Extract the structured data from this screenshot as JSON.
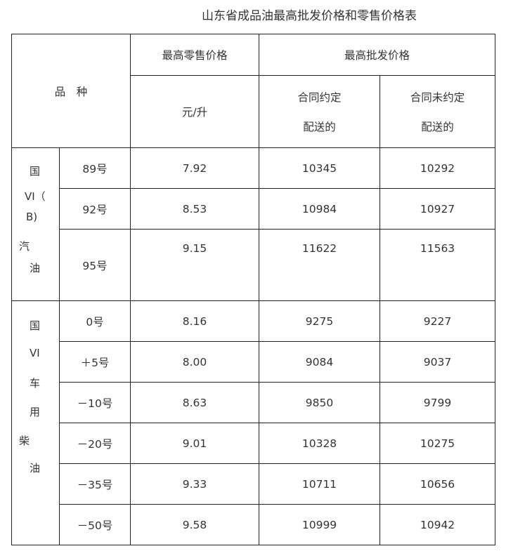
{
  "title": "山东省成品油最高批发价格和零售价格表",
  "header": {
    "variety": "品　种",
    "retail": "最高零售价格",
    "wholesale": "最高批发价格",
    "unit": "元/升",
    "contract_line1": "合同约定",
    "contract_line2": "配送的",
    "no_contract_line1": "合同未约定",
    "no_contract_line2": "配送的"
  },
  "groups": [
    {
      "label_lines": [
        "国",
        "VI（",
        "B)",
        "汽",
        "油"
      ],
      "rows": [
        {
          "grade": "89号",
          "retail": "7.92",
          "contract": "10345",
          "no_contract": "10292"
        },
        {
          "grade": "92号",
          "retail": "8.53",
          "contract": "10984",
          "no_contract": "10927"
        },
        {
          "grade": "95号",
          "retail": "9.15",
          "contract": "11622",
          "no_contract": "11563"
        }
      ]
    },
    {
      "label_lines": [
        "国",
        "VI",
        "车",
        "用",
        "柴",
        "油"
      ],
      "rows": [
        {
          "grade": "0号",
          "retail": "8.16",
          "contract": "9275",
          "no_contract": "9227"
        },
        {
          "grade": "＋5号",
          "retail": "8.00",
          "contract": "9084",
          "no_contract": "9037"
        },
        {
          "grade": "－10号",
          "retail": "8.63",
          "contract": "9850",
          "no_contract": "9799"
        },
        {
          "grade": "－20号",
          "retail": "9.01",
          "contract": "10328",
          "no_contract": "10275"
        },
        {
          "grade": "－35号",
          "retail": "9.33",
          "contract": "10711",
          "no_contract": "10656"
        },
        {
          "grade": "－50号",
          "retail": "9.58",
          "contract": "10999",
          "no_contract": "10942"
        }
      ]
    }
  ]
}
